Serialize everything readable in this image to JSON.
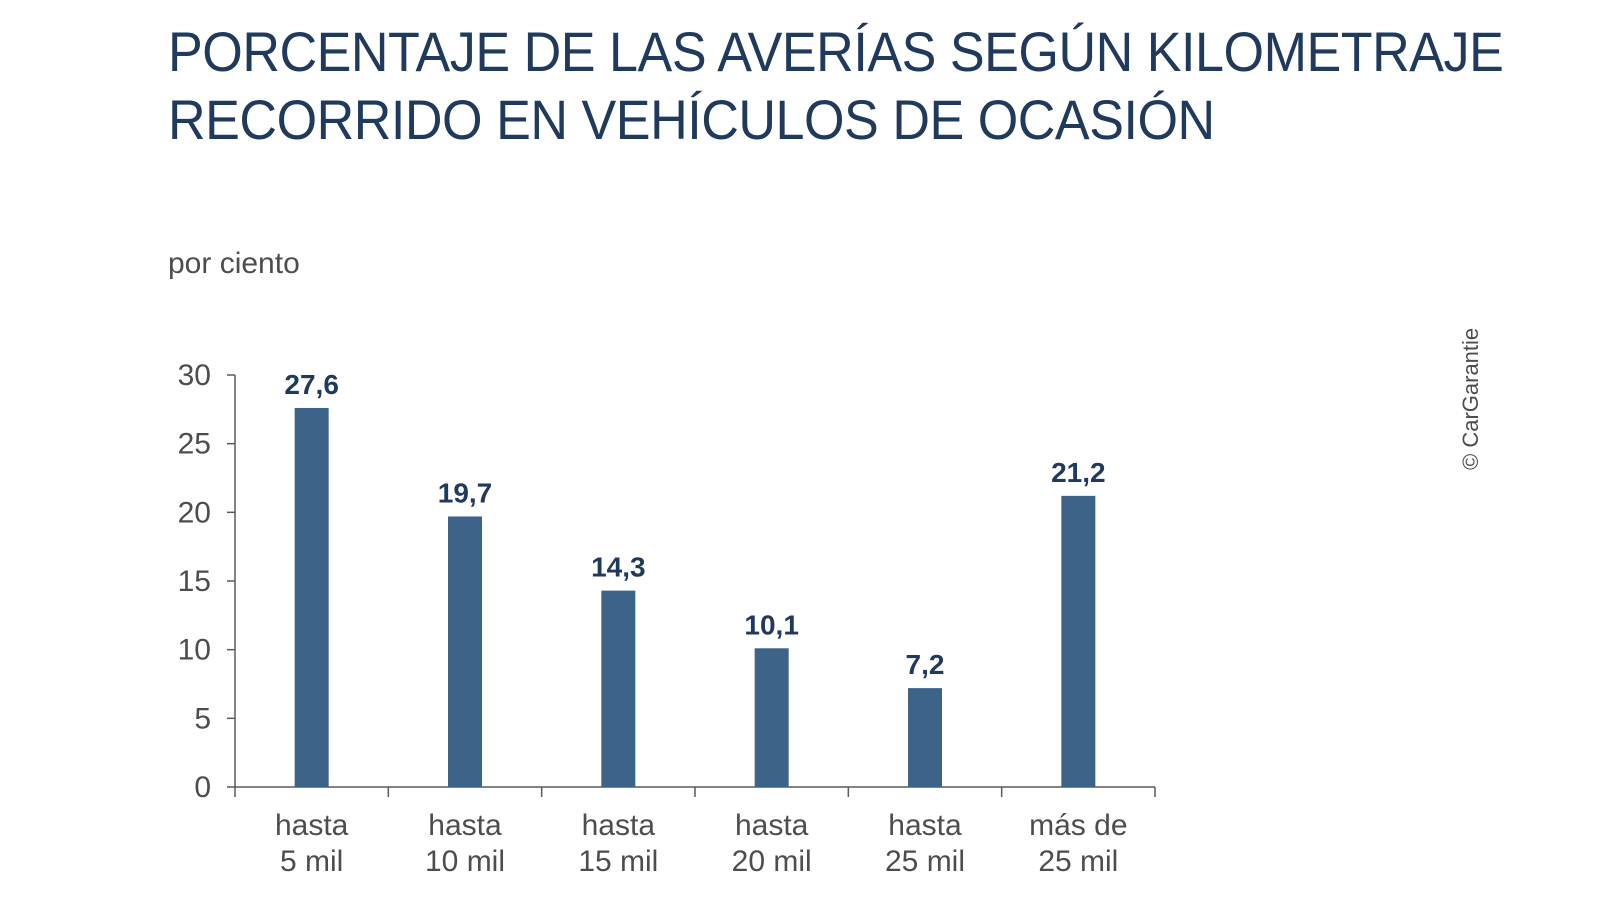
{
  "chart_data": {
    "type": "bar",
    "title_lines": [
      "PORCENTAJE DE LAS AVERÍAS SEGÚN KILOMETRAJE",
      "RECORRIDO EN VEHÍCULOS DE OCASIÓN"
    ],
    "ylabel": "por ciento",
    "ylim": [
      0,
      30
    ],
    "yticks": [
      0,
      5,
      10,
      15,
      20,
      25,
      30
    ],
    "categories": [
      [
        "hasta",
        "5 mil"
      ],
      [
        "hasta",
        "10 mil"
      ],
      [
        "hasta",
        "15 mil"
      ],
      [
        "hasta",
        "20 mil"
      ],
      [
        "hasta",
        "25 mil"
      ],
      [
        "más de",
        "25 mil"
      ]
    ],
    "values": [
      27.6,
      19.7,
      14.3,
      10.1,
      7.2,
      21.2
    ],
    "value_labels": [
      "27,6",
      "19,7",
      "14,3",
      "10,1",
      "7,2",
      "21,2"
    ],
    "bar_color": "#3d6389",
    "label_color": "#1f3a5c",
    "grid": false,
    "legend": "none"
  },
  "credit": "© CarGarantie"
}
